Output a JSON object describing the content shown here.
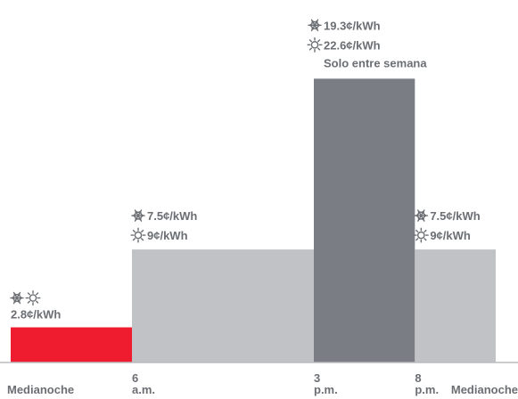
{
  "chart_data": {
    "type": "bar",
    "x_axis": {
      "range": [
        0,
        24
      ],
      "ticks": [
        {
          "hour": 0,
          "label_top": "",
          "label_bottom": "Medianoche"
        },
        {
          "hour": 6,
          "label_top": "6",
          "label_bottom": "a.m."
        },
        {
          "hour": 15,
          "label_top": "3",
          "label_bottom": "p.m."
        },
        {
          "hour": 20,
          "label_top": "8",
          "label_bottom": "p.m."
        },
        {
          "hour": 24,
          "label_top": "",
          "label_bottom": "Medianoche"
        }
      ]
    },
    "y_axis": {
      "range": [
        0,
        25
      ],
      "unit": "¢/kWh"
    },
    "bars": [
      {
        "start": 0,
        "end": 6,
        "winter": 2.8,
        "summer": 2.8,
        "color": "#ee1c2e",
        "labels": {
          "icons": [
            "snowflake-icon",
            "sun-icon"
          ],
          "lines": [
            "2.8¢/kWh"
          ],
          "note": ""
        }
      },
      {
        "start": 6,
        "end": 15,
        "winter": 7.5,
        "summer": 9,
        "color": "#c0c2c5",
        "labels": {
          "lines": [
            "7.5¢/kWh",
            "9¢/kWh"
          ],
          "note": ""
        }
      },
      {
        "start": 15,
        "end": 20,
        "winter": 19.3,
        "summer": 22.6,
        "color": "#7a7d83",
        "labels": {
          "lines": [
            "19.3¢/kWh",
            "22.6¢/kWh"
          ],
          "note": "Solo entre semana"
        }
      },
      {
        "start": 20,
        "end": 24,
        "winter": 7.5,
        "summer": 9,
        "color": "#c0c2c5",
        "labels": {
          "lines": [
            "7.5¢/kWh",
            "9¢/kWh"
          ],
          "note": ""
        }
      }
    ],
    "axis_color": "#b9bbbe",
    "text_color": "#6b6e73"
  }
}
